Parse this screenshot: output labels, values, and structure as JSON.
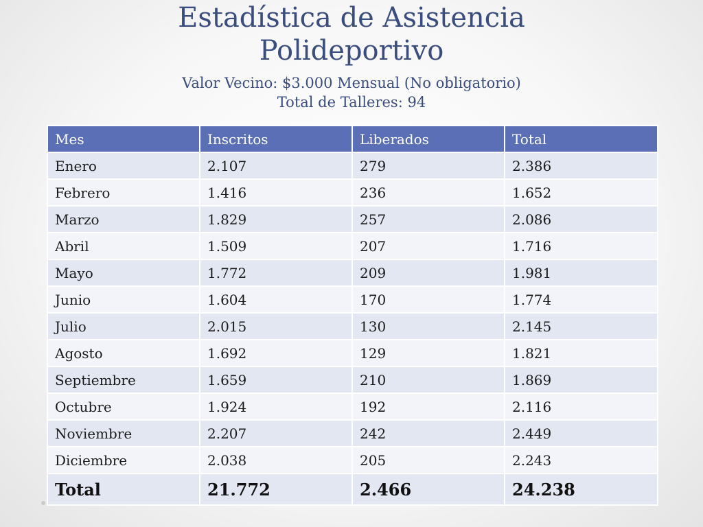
{
  "title": {
    "line1": "Estadística de Asistencia",
    "line2": "Polideportivo",
    "subtitle1": "Valor Vecino: $3.000 Mensual (No obligatorio)",
    "subtitle2": "Total de Talleres: 94"
  },
  "table": {
    "headers": [
      "Mes",
      "Inscritos",
      "Liberados",
      "Total"
    ],
    "rows": [
      [
        "Enero",
        "2.107",
        "279",
        "2.386"
      ],
      [
        "Febrero",
        "1.416",
        "236",
        "1.652"
      ],
      [
        "Marzo",
        "1.829",
        "257",
        "2.086"
      ],
      [
        "Abril",
        "1.509",
        "207",
        "1.716"
      ],
      [
        "Mayo",
        "1.772",
        "209",
        "1.981"
      ],
      [
        "Junio",
        "1.604",
        "170",
        "1.774"
      ],
      [
        "Julio",
        "2.015",
        "130",
        "2.145"
      ],
      [
        "Agosto",
        "1.692",
        "129",
        "1.821"
      ],
      [
        "Septiembre",
        "1.659",
        "210",
        "1.869"
      ],
      [
        "Octubre",
        "1.924",
        "192",
        "2.116"
      ],
      [
        "Noviembre",
        "2.207",
        "242",
        "2.449"
      ],
      [
        "Diciembre",
        "2.038",
        "205",
        "2.243"
      ]
    ],
    "total_row": [
      "Total",
      "21.772",
      "2.466",
      "24.238"
    ]
  },
  "colors": {
    "title": "#3a4d80",
    "header_bg": "#5a6fb6",
    "row_band_dark": "#e3e7f2",
    "row_band_light": "#f2f4f9"
  }
}
